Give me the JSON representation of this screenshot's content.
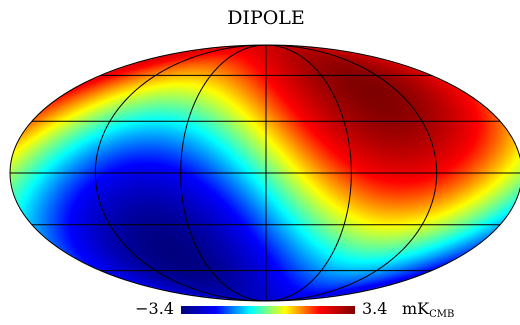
{
  "map": {
    "title": "DIPOLE",
    "projection": "mollweide",
    "coordinate_grid": true,
    "colormap": [
      "#00007f",
      "#0000ff",
      "#00ffff",
      "#ffff00",
      "#ff0000",
      "#7f0000"
    ],
    "dipole_direction": {
      "longitude_deg": 264,
      "latitude_deg": 48
    },
    "colorbar": {
      "min_label": "−3.4",
      "max_label": "3.4",
      "unit_main": "mK",
      "unit_sub": "CMB",
      "min_value": -3.4,
      "max_value": 3.4
    }
  }
}
